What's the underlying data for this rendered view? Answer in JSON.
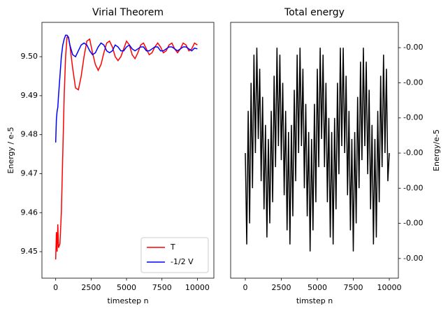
{
  "chart_data": [
    {
      "type": "line",
      "title": "Virial Theorem",
      "xlabel": "timestep n",
      "ylabel": "Energy / e-5",
      "x": [
        0,
        50,
        100,
        150,
        200,
        300,
        400,
        500,
        600,
        700,
        800,
        900,
        1000,
        1200,
        1400,
        1600,
        1800,
        2000,
        2200,
        2400,
        2600,
        2800,
        3000,
        3200,
        3400,
        3600,
        3800,
        4000,
        4200,
        4400,
        4600,
        4800,
        5000,
        5200,
        5400,
        5600,
        5800,
        6000,
        6200,
        6400,
        6600,
        6800,
        7000,
        7200,
        7400,
        7600,
        7800,
        8000,
        8200,
        8400,
        8600,
        8800,
        9000,
        9200,
        9400,
        9600,
        9800,
        10000
      ],
      "series": [
        {
          "name": "T",
          "color": "#ff0000",
          "values": [
            9.448,
            9.455,
            9.45,
            9.457,
            9.451,
            9.452,
            9.46,
            9.475,
            9.49,
            9.5,
            9.505,
            9.505,
            9.503,
            9.497,
            9.492,
            9.4915,
            9.495,
            9.5,
            9.504,
            9.5045,
            9.501,
            9.498,
            9.4965,
            9.498,
            9.501,
            9.5035,
            9.504,
            9.5025,
            9.5,
            9.499,
            9.5,
            9.502,
            9.504,
            9.503,
            9.5005,
            9.4995,
            9.501,
            9.503,
            9.5035,
            9.502,
            9.5005,
            9.501,
            9.5025,
            9.5035,
            9.5025,
            9.501,
            9.5015,
            9.503,
            9.5035,
            9.502,
            9.501,
            9.502,
            9.5035,
            9.503,
            9.5015,
            9.502,
            9.5035,
            9.503
          ]
        },
        {
          "name": "-1/2 V",
          "color": "#0000ff",
          "values": [
            9.478,
            9.484,
            9.486,
            9.487,
            9.49,
            9.495,
            9.5,
            9.503,
            9.5045,
            9.5055,
            9.5055,
            9.505,
            9.503,
            9.5005,
            9.5,
            9.5015,
            9.503,
            9.5035,
            9.503,
            9.5015,
            9.5005,
            9.501,
            9.5025,
            9.5035,
            9.503,
            9.5015,
            9.501,
            9.5015,
            9.503,
            9.5025,
            9.5015,
            9.5015,
            9.5025,
            9.503,
            9.502,
            9.5015,
            9.502,
            9.5025,
            9.5025,
            9.5015,
            9.5015,
            9.502,
            9.5025,
            9.5025,
            9.5015,
            9.5015,
            9.502,
            9.5025,
            9.5025,
            9.502,
            9.5015,
            9.502,
            9.5025,
            9.5025,
            9.502,
            9.5015,
            9.5022,
            9.502
          ]
        }
      ],
      "xlim": [
        -971,
        11165
      ],
      "xticks": [
        0,
        2500,
        5000,
        7500,
        10000
      ],
      "ylim": [
        9.4432,
        9.5088
      ],
      "yticks": [
        9.45,
        9.46,
        9.47,
        9.48,
        9.49,
        {
          "value": 9.5,
          "label": "9.50"
        }
      ],
      "legend": "lower right",
      "y_axis_side": "left"
    },
    {
      "type": "line",
      "title": "Total energy",
      "xlabel": "timstep n",
      "ylabel": "Energy/e-5",
      "x": [
        0,
        100,
        200,
        300,
        400,
        500,
        600,
        700,
        800,
        900,
        1000,
        1100,
        1200,
        1300,
        1400,
        1500,
        1600,
        1700,
        1800,
        1900,
        2000,
        2100,
        2200,
        2300,
        2400,
        2500,
        2600,
        2700,
        2800,
        2900,
        3000,
        3100,
        3200,
        3300,
        3400,
        3500,
        3600,
        3700,
        3800,
        3900,
        4000,
        4100,
        4200,
        4300,
        4400,
        4500,
        4600,
        4700,
        4800,
        4900,
        5000,
        5100,
        5200,
        5300,
        5400,
        5500,
        5600,
        5700,
        5800,
        5900,
        6000,
        6100,
        6200,
        6300,
        6400,
        6500,
        6600,
        6700,
        6800,
        6900,
        7000,
        7100,
        7200,
        7300,
        7400,
        7500,
        7600,
        7700,
        7800,
        7900,
        8000,
        8100,
        8200,
        8300,
        8400,
        8500,
        8600,
        8700,
        8800,
        8900,
        9000,
        9100,
        9200,
        9300,
        9400,
        9500,
        9600,
        9700,
        9800,
        9900,
        10000
      ],
      "series": [
        {
          "name": "Total energy",
          "color": "#000000",
          "values": [
            -0.002,
            -0.0033,
            -0.0014,
            -0.003,
            -0.001,
            -0.0025,
            -0.0006,
            -0.002,
            -0.0005,
            -0.0018,
            -0.0008,
            -0.0024,
            -0.0012,
            -0.0028,
            -0.0016,
            -0.0032,
            -0.0018,
            -0.003,
            -0.0014,
            -0.0027,
            -0.0009,
            -0.0022,
            -0.0005,
            -0.0019,
            -0.0006,
            -0.0021,
            -0.001,
            -0.0026,
            -0.0014,
            -0.0031,
            -0.0017,
            -0.0033,
            -0.0016,
            -0.0029,
            -0.0011,
            -0.0024,
            -0.0006,
            -0.002,
            -0.0005,
            -0.0019,
            -0.0008,
            -0.0025,
            -0.0013,
            -0.0029,
            -0.0017,
            -0.0034,
            -0.0018,
            -0.0031,
            -0.0013,
            -0.0027,
            -0.0008,
            -0.0022,
            -0.0005,
            -0.0018,
            -0.0006,
            -0.0022,
            -0.001,
            -0.0027,
            -0.0015,
            -0.0032,
            -0.0017,
            -0.0033,
            -0.0015,
            -0.0028,
            -0.001,
            -0.0023,
            -0.0005,
            -0.0019,
            -0.0005,
            -0.002,
            -0.0009,
            -0.0026,
            -0.0014,
            -0.0031,
            -0.0018,
            -0.0034,
            -0.0017,
            -0.003,
            -0.0012,
            -0.0025,
            -0.0007,
            -0.0021,
            -0.0005,
            -0.0019,
            -0.0007,
            -0.0023,
            -0.0011,
            -0.0028,
            -0.0016,
            -0.0033,
            -0.0018,
            -0.0032,
            -0.0014,
            -0.0027,
            -0.0009,
            -0.0022,
            -0.0006,
            -0.002,
            -0.0008,
            -0.0024,
            -0.002
          ]
        }
      ],
      "xlim": [
        -1019,
        10631
      ],
      "xticks": [
        0,
        2500,
        5000,
        7500,
        10000
      ],
      "ylim": [
        -0.00378,
        -0.00014
      ],
      "yticks": [
        {
          "value": -0.0035,
          "label": "-0.00"
        },
        {
          "value": -0.003,
          "label": "-0.00"
        },
        {
          "value": -0.0025,
          "label": "-0.00"
        },
        {
          "value": -0.002,
          "label": "-0.00"
        },
        {
          "value": -0.0015,
          "label": "-0.00"
        },
        {
          "value": -0.001,
          "label": "-0.00"
        },
        {
          "value": -0.0005,
          "label": "-0.00"
        }
      ],
      "y_axis_side": "right"
    }
  ]
}
